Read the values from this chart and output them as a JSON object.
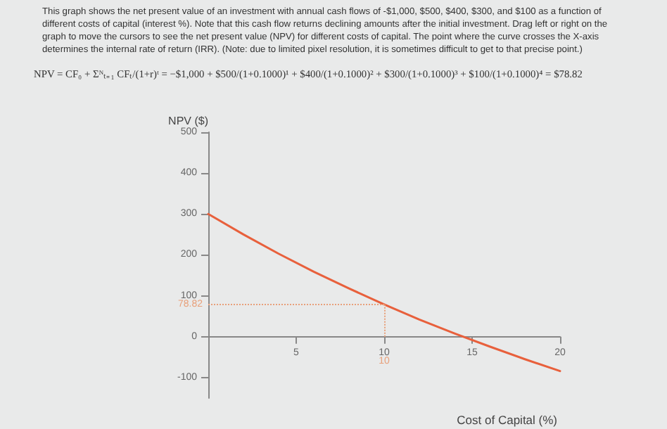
{
  "chart_data": {
    "type": "line",
    "subtitle": "This graph shows the net present value of an investment with annual cash flows of -$1,000, $500, $400, $300, and $100 as a function of different costs of capital (interest %). Note that this cash flow returns declining amounts after the initial investment. Drag left or right on the graph to move the cursors to see the net present value (NPV) for different costs of capital. The point where the curve crosses the X-axis determines the internal rate of return (IRR). (Note: due to limited pixel resolution, it is sometimes difficult to get to that precise point.)",
    "annotations": [
      "NPV = CF₀ + Σᴺₜ₌₁ CFₜ/(1+r)ᵗ = −$1,000 + $500/(1+0.1000)¹ + $400/(1+0.1000)² + $300/(1+0.1000)³ + $100/(1+0.1000)⁴ = $78.82"
    ],
    "xlabel": "Cost of Capital (%)",
    "ylabel": "NPV ($)",
    "x": [
      0,
      2,
      4,
      6,
      8,
      10,
      12,
      14,
      16,
      18,
      20
    ],
    "series": [
      {
        "color": "#e8603c",
        "values": [
          300,
          250,
          203,
          159,
          118,
          79,
          42,
          8,
          -24,
          -55,
          -84
        ]
      }
    ],
    "xlim": [
      0,
      20
    ],
    "xticks": [
      5,
      10,
      15,
      20
    ],
    "ylim": [
      -150,
      500
    ],
    "yticks": [
      -100,
      0,
      100,
      200,
      300,
      400,
      500
    ],
    "grid": false,
    "marker": "none",
    "line_style": "solid",
    "ref_lines": [
      {
        "axis": "y",
        "value": 78.82,
        "label": "78.82",
        "color": "#e8a07a",
        "line_style": "dotted"
      },
      {
        "axis": "x",
        "value": 10,
        "label": "10",
        "color": "#e8a07a",
        "line_style": "dotted"
      }
    ]
  }
}
